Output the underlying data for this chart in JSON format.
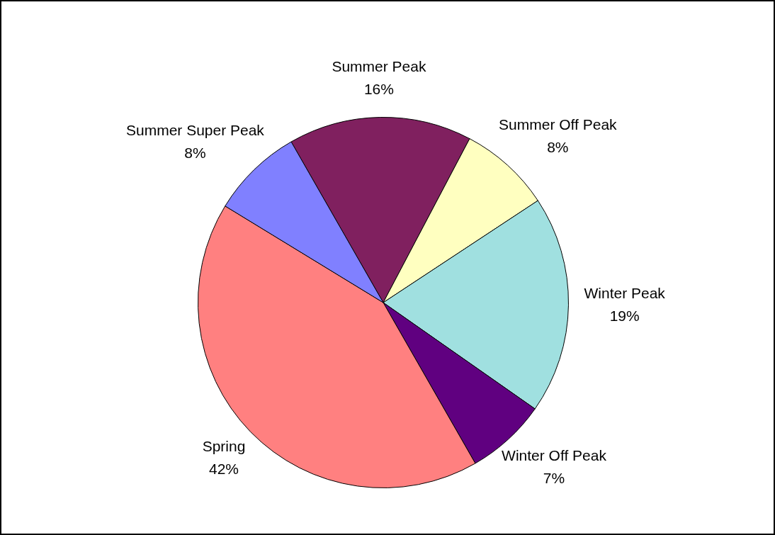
{
  "chart_data": {
    "type": "pie",
    "categories": [
      "Summer Peak",
      "Summer Off Peak",
      "Winter Peak",
      "Winter Off Peak",
      "Spring",
      "Summer Super Peak"
    ],
    "values": [
      16,
      8,
      19,
      7,
      42,
      8
    ],
    "colors": [
      "#80205f",
      "#ffffc0",
      "#a0e0e0",
      "#600080",
      "#ff8080",
      "#8080ff"
    ],
    "value_labels": [
      "16%",
      "8%",
      "19%",
      "7%",
      "42%",
      "8%"
    ],
    "legend": false
  }
}
